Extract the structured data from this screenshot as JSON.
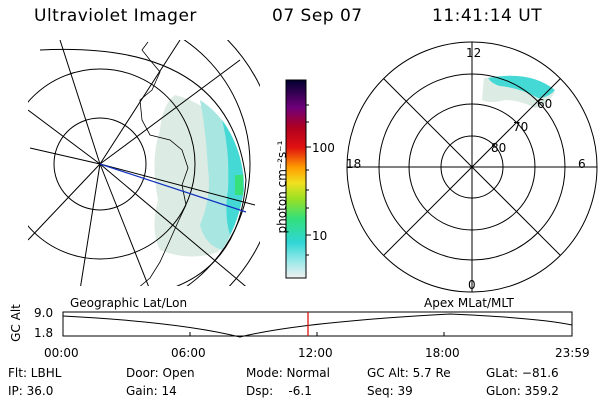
{
  "header": {
    "title": "Ultraviolet Imager",
    "date": "07 Sep 07",
    "time": "11:41:14 UT"
  },
  "colorbar": {
    "unit_label": "photon cm⁻²s⁻¹",
    "ticks": [
      "100",
      "10"
    ]
  },
  "polar_plot": {
    "mlt_labels": {
      "top": "12",
      "left": "18",
      "right": "6",
      "bottom": "0"
    },
    "lat_labels": [
      "60",
      "70",
      "80"
    ]
  },
  "map_labels": {
    "left": "Geographic Lat/Lon",
    "right": "Apex MLat/MLT"
  },
  "altitude_plot": {
    "ylabel": "GC Alt",
    "yticks": [
      "9.0",
      "1.8"
    ],
    "xticks": [
      "00:00",
      "06:00",
      "12:00",
      "18:00",
      "23:59"
    ],
    "current_time": "11:41"
  },
  "info": {
    "flt": "Flt: LBHL",
    "ip": "IP: 36.0",
    "door": "Door: Open",
    "gain": "Gain: 14",
    "mode": "Mode: Normal",
    "dsp": "Dsp:    -6.1",
    "gcalt": "GC Alt: 5.7 Re",
    "seq": "Seq: 39",
    "glat": "GLat: −81.6",
    "glon": "GLon: 359.2"
  },
  "colors": {
    "aurora_cyan": "#2fd6d6",
    "aurora_green": "#36e07a",
    "track_blue": "#1030c0",
    "time_marker": "#e01010"
  }
}
